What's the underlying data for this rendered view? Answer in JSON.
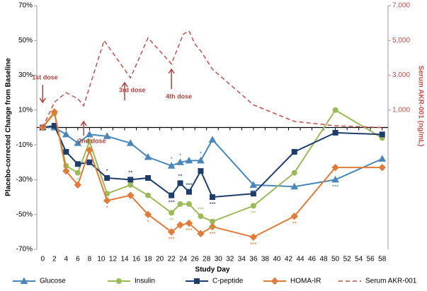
{
  "chart_data": {
    "type": "line",
    "xlabel": "Study Day",
    "ylabel": "Placebo-corrected Change from Baseline",
    "y2label": "Serum AKR-001 (ng/mL)",
    "x": [
      0,
      2,
      4,
      6,
      8,
      11,
      15,
      18,
      22,
      23.5,
      25,
      27,
      29,
      36,
      43,
      50,
      58
    ],
    "xlim": [
      -1,
      59
    ],
    "xticks": [
      0,
      2,
      4,
      6,
      8,
      10,
      12,
      14,
      16,
      18,
      20,
      22,
      24,
      26,
      28,
      30,
      32,
      34,
      36,
      38,
      40,
      42,
      44,
      46,
      48,
      50,
      52,
      54,
      56,
      58
    ],
    "ylim": [
      -70,
      70
    ],
    "yticks": [
      {
        "value": 70,
        "label": "70%"
      },
      {
        "value": 50,
        "label": "50%"
      },
      {
        "value": 30,
        "label": "30%"
      },
      {
        "value": 10,
        "label": "10%"
      },
      {
        "value": -10,
        "label": "-10%"
      },
      {
        "value": -30,
        "label": "-30%"
      },
      {
        "value": -50,
        "label": "-50%"
      },
      {
        "value": -70,
        "label": "-70%"
      }
    ],
    "y2lim": [
      -7000,
      7000
    ],
    "y2ticks": [
      {
        "value": 1000,
        "label": "1,000"
      },
      {
        "value": 3000,
        "label": "3,000"
      },
      {
        "value": 5000,
        "label": "5,000"
      },
      {
        "value": 7000,
        "label": "7,000"
      }
    ],
    "series": [
      {
        "name": "Glucose",
        "color": "#4a86b8",
        "marker": "triangle",
        "values": [
          0,
          0,
          -4,
          -9,
          -4,
          -5,
          -9,
          -17,
          -22,
          -20,
          -19,
          -19,
          -7,
          -33,
          -34,
          -30,
          -18
        ]
      },
      {
        "name": "Insulin",
        "color": "#9bbb59",
        "marker": "circle",
        "values": [
          0,
          8,
          -22,
          -26,
          -8,
          -38,
          -33,
          -39,
          -49,
          -44,
          -44,
          -51,
          -54,
          -45,
          -26,
          10,
          -6
        ]
      },
      {
        "name": "C-peptide",
        "color": "#1f3d6b",
        "marker": "square",
        "values": [
          0,
          1,
          -14,
          -21,
          -20,
          -29,
          -30,
          -29,
          -39,
          -32,
          -37,
          -25,
          -40,
          -38,
          -14,
          -3,
          -4
        ]
      },
      {
        "name": "HOMA-IR",
        "color": "#e07b39",
        "marker": "diamond",
        "values": [
          0,
          9,
          -25,
          -33,
          -13,
          -42,
          -39,
          -50,
          -60,
          -56,
          -55,
          -61,
          -57,
          -63,
          -51,
          -23,
          -23
        ]
      },
      {
        "name": "Serum AKR-001",
        "color": "#c0504d",
        "dashed": true,
        "axis": "y2",
        "x": [
          0,
          2,
          4,
          6,
          7,
          10.5,
          15,
          18,
          22,
          24,
          25,
          26,
          27,
          29,
          36,
          43,
          50,
          58
        ],
        "values": [
          0,
          1450,
          2000,
          1650,
          1250,
          5000,
          2850,
          5150,
          3650,
          5350,
          5550,
          4800,
          4400,
          3350,
          1300,
          350,
          100,
          0
        ]
      }
    ],
    "doses": [
      {
        "label": "1st dose",
        "day": 0,
        "dir": "down"
      },
      {
        "label": "2nd dose",
        "day": 7,
        "dir": "up"
      },
      {
        "label": "3rd dose",
        "day": 14,
        "dir": "up"
      },
      {
        "label": "4th dose",
        "day": 22,
        "dir": "up"
      }
    ],
    "stars": [
      {
        "series": 0,
        "point": 8,
        "text": "*",
        "pos": "above"
      },
      {
        "series": 0,
        "point": 9,
        "text": "*",
        "pos": "above"
      },
      {
        "series": 0,
        "point": 11,
        "text": "*",
        "pos": "above"
      },
      {
        "series": 0,
        "point": 13,
        "text": "***",
        "pos": "below"
      },
      {
        "series": 0,
        "point": 15,
        "text": "***",
        "pos": "below"
      },
      {
        "series": 2,
        "point": 5,
        "text": "*",
        "pos": "above"
      },
      {
        "series": 2,
        "point": 6,
        "text": "**",
        "pos": "above"
      },
      {
        "series": 2,
        "point": 8,
        "text": "***",
        "pos": "below"
      },
      {
        "series": 2,
        "point": 9,
        "text": "**",
        "pos": "above"
      },
      {
        "series": 2,
        "point": 10,
        "text": "***",
        "pos": "above"
      },
      {
        "series": 2,
        "point": 12,
        "text": "***",
        "pos": "below"
      },
      {
        "series": 1,
        "point": 3,
        "text": "*",
        "pos": "below"
      },
      {
        "series": 1,
        "point": 8,
        "text": "**",
        "pos": "below"
      },
      {
        "series": 1,
        "point": 11,
        "text": "***",
        "pos": "above"
      },
      {
        "series": 1,
        "point": 12,
        "text": "***",
        "pos": "below"
      },
      {
        "series": 1,
        "point": 13,
        "text": "**",
        "pos": "below"
      },
      {
        "series": 3,
        "point": 5,
        "text": "*",
        "pos": "below"
      },
      {
        "series": 3,
        "point": 7,
        "text": "*",
        "pos": "below"
      },
      {
        "series": 3,
        "point": 8,
        "text": "***",
        "pos": "below"
      },
      {
        "series": 3,
        "point": 10,
        "text": "***",
        "pos": "below"
      },
      {
        "series": 3,
        "point": 12,
        "text": "***",
        "pos": "below"
      },
      {
        "series": 3,
        "point": 13,
        "text": "***",
        "pos": "below"
      },
      {
        "series": 3,
        "point": 14,
        "text": "**",
        "pos": "below"
      }
    ]
  }
}
